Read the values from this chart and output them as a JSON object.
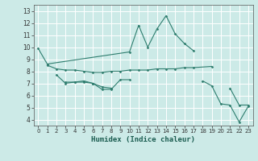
{
  "xlabel": "Humidex (Indice chaleur)",
  "ylabel": "",
  "xlim": [
    -0.5,
    23.5
  ],
  "ylim": [
    3.5,
    13.5
  ],
  "xticks": [
    0,
    1,
    2,
    3,
    4,
    5,
    6,
    7,
    8,
    9,
    10,
    11,
    12,
    13,
    14,
    15,
    16,
    17,
    18,
    19,
    20,
    21,
    22,
    23
  ],
  "yticks": [
    4,
    5,
    6,
    7,
    8,
    9,
    10,
    11,
    12,
    13
  ],
  "background_color": "#cceae7",
  "grid_color": "#ffffff",
  "line_color": "#2e7d6e",
  "series": [
    [
      9.9,
      8.6,
      null,
      null,
      null,
      null,
      null,
      null,
      null,
      null,
      9.6,
      11.8,
      10.0,
      11.5,
      12.6,
      11.1,
      10.3,
      9.7,
      null,
      null,
      null,
      null,
      null,
      null
    ],
    [
      null,
      null,
      7.7,
      7.0,
      7.1,
      7.1,
      7.0,
      6.5,
      6.5,
      7.3,
      7.3,
      null,
      null,
      null,
      null,
      null,
      null,
      null,
      null,
      null,
      null,
      null,
      null,
      null
    ],
    [
      null,
      null,
      null,
      7.1,
      7.1,
      7.2,
      7.0,
      6.7,
      6.6,
      null,
      null,
      null,
      null,
      null,
      null,
      null,
      null,
      null,
      null,
      null,
      null,
      null,
      null,
      null
    ],
    [
      null,
      8.5,
      8.2,
      8.1,
      8.1,
      8.0,
      7.9,
      7.9,
      8.0,
      8.0,
      8.1,
      8.1,
      8.1,
      8.2,
      8.2,
      8.2,
      8.3,
      8.3,
      null,
      8.4,
      null,
      null,
      null,
      null
    ],
    [
      null,
      null,
      null,
      null,
      null,
      null,
      null,
      null,
      null,
      null,
      null,
      null,
      null,
      null,
      null,
      null,
      null,
      null,
      null,
      null,
      null,
      6.6,
      5.2,
      5.2
    ],
    [
      null,
      null,
      null,
      null,
      null,
      null,
      null,
      null,
      null,
      null,
      null,
      null,
      null,
      null,
      null,
      null,
      null,
      null,
      7.2,
      6.8,
      5.3,
      5.2,
      3.8,
      5.1
    ]
  ]
}
